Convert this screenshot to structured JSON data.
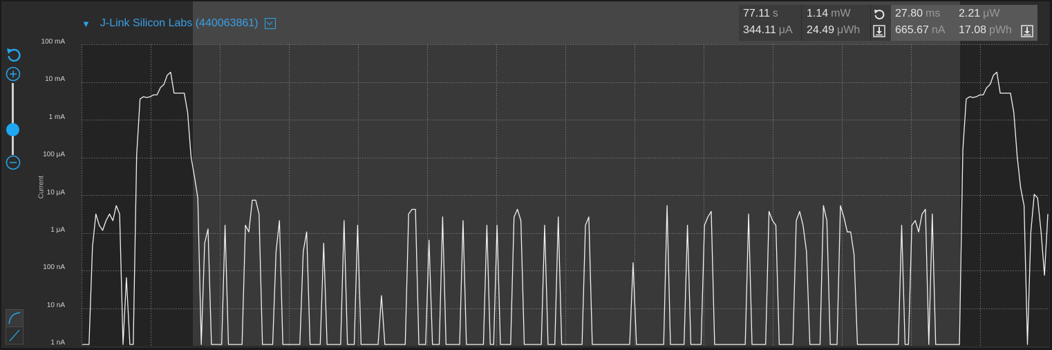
{
  "device": {
    "name": "J-Link Silicon Labs (440063861)"
  },
  "stats_window": {
    "time": {
      "value": "77.11",
      "unit": "s"
    },
    "avg_current": {
      "value": "344.11",
      "unit": "μA"
    },
    "power": {
      "value": "1.14",
      "unit": "mW"
    },
    "energy": {
      "value": "24.49",
      "unit": "μWh"
    }
  },
  "stats_selection": {
    "time": {
      "value": "27.80",
      "unit": "ms"
    },
    "avg_current": {
      "value": "665.67",
      "unit": "nA"
    },
    "power": {
      "value": "2.21",
      "unit": "μW"
    },
    "energy": {
      "value": "17.08",
      "unit": "pWh"
    }
  },
  "icons": {
    "reset_window": "undo-icon",
    "export_window": "download-icon",
    "reset_selection": "undo-icon",
    "export_selection": "download-icon",
    "zoom_reset": "undo-icon",
    "zoom_in": "plus-circle-icon",
    "zoom_out": "minus-circle-icon",
    "mode_log": "log-curve-icon",
    "mode_linear": "linear-icon"
  },
  "colors": {
    "accent": "#27a6ef",
    "trace": "#f2f2f2",
    "plot_bg": "#3a3939",
    "plot_bg_dim": "#232323"
  },
  "chart_data": {
    "type": "line",
    "ylabel": "Current",
    "yscale": "log",
    "ylim": [
      "1 nA",
      "100 mA"
    ],
    "yticks": [
      "100 mA",
      "10 mA",
      "1 mA",
      "100 μA",
      "10 μA",
      "1 μA",
      "100 nA",
      "10 nA",
      "1 nA"
    ],
    "grid": true,
    "selection": {
      "duration": "27.80 ms"
    },
    "series": [
      {
        "unit": "A",
        "values": [
          1e-09,
          1e-09,
          1e-09,
          4e-07,
          3e-06,
          1.5e-06,
          1.1e-06,
          2e-06,
          3e-06,
          2e-06,
          5e-06,
          3e-06,
          1e-09,
          6e-08,
          1e-09,
          1e-09,
          0.00011,
          0.0035,
          0.004,
          0.0038,
          0.004,
          0.0045,
          0.0045,
          0.007,
          0.0085,
          0.015,
          0.018,
          0.005,
          0.005,
          0.005,
          0.005,
          0.0015,
          0.0001,
          3e-05,
          8e-06,
          1e-09,
          5e-07,
          1.2e-06,
          1e-09,
          1e-09,
          1e-09,
          1e-09,
          1.5e-06,
          1e-09,
          1e-09,
          1e-09,
          1e-09,
          1e-09,
          1.5e-06,
          1e-06,
          7e-06,
          7e-06,
          3e-06,
          1e-09,
          1e-09,
          1e-09,
          1e-09,
          3e-07,
          2e-06,
          1e-09,
          1e-09,
          1e-09,
          1e-09,
          1e-09,
          1e-09,
          3e-07,
          1e-06,
          1e-09,
          1e-09,
          1e-09,
          1e-09,
          5e-07,
          1e-09,
          1e-09,
          1e-09,
          1e-09,
          1e-09,
          2e-06,
          1e-09,
          1e-09,
          1e-09,
          1.5e-06,
          1e-09,
          1e-09,
          1e-09,
          1e-09,
          1e-09,
          1e-09,
          2e-08,
          1e-09,
          1e-09,
          1e-09,
          1e-09,
          1e-09,
          1e-09,
          1e-09,
          3e-06,
          4e-06,
          4e-06,
          1e-09,
          1e-09,
          1e-09,
          6e-07,
          1e-09,
          1e-09,
          1e-09,
          2.5e-06,
          1e-09,
          1e-09,
          1e-09,
          1e-09,
          1e-09,
          2e-06,
          1e-09,
          1e-09,
          1e-09,
          1e-09,
          1e-09,
          1e-09,
          1.5e-06,
          1e-09,
          1e-09,
          1.5e-06,
          1e-09,
          1e-09,
          1e-09,
          1e-09,
          2.5e-06,
          4e-06,
          2e-06,
          1e-09,
          1e-09,
          1e-09,
          1e-09,
          1e-09,
          1e-09,
          1.5e-06,
          1e-09,
          1e-09,
          1e-09,
          2.5e-06,
          1e-09,
          1e-09,
          1e-09,
          1e-09,
          1e-09,
          1e-09,
          1e-09,
          1.5e-06,
          2.5e-06,
          1e-09,
          1e-09,
          1e-09,
          1e-09,
          1e-09,
          1e-09,
          1e-09,
          1e-09,
          1e-09,
          1e-09,
          1e-09,
          1e-09,
          1.5e-07,
          1e-09,
          1e-09,
          1e-09,
          1e-09,
          1e-09,
          1e-09,
          1e-09,
          1e-09,
          1e-09,
          5e-06,
          1e-09,
          1e-09,
          1e-09,
          1e-09,
          1e-09,
          1.5e-06,
          1e-09,
          1e-09,
          1e-09,
          1e-09,
          1.5e-06,
          2.5e-06,
          3.5e-06,
          1e-09,
          1e-09,
          1e-09,
          1e-09,
          1e-09,
          1e-09,
          1e-09,
          1e-09,
          1e-09,
          1e-09,
          3e-06,
          1e-09,
          1e-09,
          1e-09,
          1e-09,
          1e-09,
          3.5e-06,
          2e-06,
          1.5e-06,
          1e-09,
          1e-09,
          1e-09,
          1e-09,
          1e-09,
          2e-06,
          3.5e-06,
          1.5e-06,
          3e-07,
          1e-09,
          1e-09,
          1e-09,
          1e-09,
          5e-06,
          2e-06,
          1e-09,
          1e-09,
          1e-09,
          5e-06,
          2.5e-06,
          1e-06,
          1e-06,
          2.5e-07,
          1e-09,
          1e-09,
          1e-09,
          1e-09,
          1e-09,
          1e-09,
          1e-09,
          1e-09,
          1e-09,
          1e-09,
          1e-09,
          1e-09,
          1e-09,
          1.5e-06,
          1e-09,
          1e-09,
          1.5e-06,
          2e-06,
          1e-06,
          3e-06,
          4e-06,
          1e-09,
          3e-06,
          1e-09,
          1e-09,
          1e-09,
          1e-09,
          1e-09,
          1e-09,
          1e-09,
          1e-09,
          0.00015,
          0.0035,
          0.004,
          0.0038,
          0.004,
          0.0045,
          0.0045,
          0.007,
          0.0085,
          0.015,
          0.018,
          0.005,
          0.005,
          0.005,
          0.005,
          0.0015,
          0.0001,
          1.5e-05,
          5e-06,
          1e-09,
          1e-06,
          1e-05,
          8e-06,
          1e-06,
          7e-08,
          3e-06
        ]
      }
    ]
  }
}
